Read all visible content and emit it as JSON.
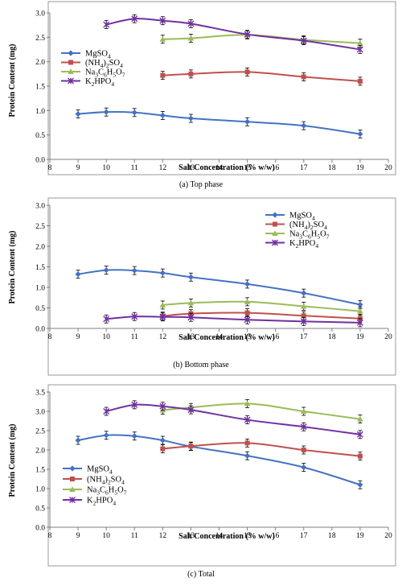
{
  "chart_data": [
    {
      "type": "line",
      "caption": "(a) Top phase",
      "xlabel": "Salt Concentration (% w/w)",
      "ylabel": "Protein Content (mg)",
      "xlim": [
        8,
        20
      ],
      "ylim": [
        0,
        3.0
      ],
      "xticks": [
        "8",
        "9",
        "10",
        "11",
        "12",
        "13",
        "14",
        "15",
        "16",
        "17",
        "18",
        "19",
        "20"
      ],
      "yticks": [
        "0.0",
        "0.5",
        "1.0",
        "1.5",
        "2.0",
        "2.5",
        "3.0"
      ],
      "grid": false,
      "legend_position": "top-left",
      "series": [
        {
          "name": "MgSO4",
          "legend_main": "MgSO",
          "legend_sub": "4",
          "color": "#4472C4",
          "marker": "diamond",
          "x": [
            9,
            10,
            11,
            12,
            13,
            15,
            17,
            19
          ],
          "y": [
            0.93,
            0.97,
            0.96,
            0.9,
            0.84,
            0.77,
            0.69,
            0.52
          ]
        },
        {
          "name": "(NH4)2SO4",
          "legend_main": "(NH",
          "legend_sub": "4",
          "legend_main2": ")",
          "legend_sub2": "2",
          "legend_main3": "SO",
          "legend_sub3": "4",
          "color": "#C0504D",
          "marker": "square",
          "x": [
            12,
            13,
            15,
            17,
            19
          ],
          "y": [
            1.72,
            1.75,
            1.79,
            1.69,
            1.6
          ]
        },
        {
          "name": "Na3C6H5O7",
          "legend_main": "Na",
          "legend_sub": "3",
          "legend_main2": "C",
          "legend_sub2": "6",
          "legend_main3": "H",
          "legend_sub3": "5",
          "legend_main4": "O",
          "legend_sub4": "7",
          "color": "#9BBB59",
          "marker": "triangle",
          "x": [
            12,
            13,
            15,
            17,
            19
          ],
          "y": [
            2.46,
            2.48,
            2.55,
            2.45,
            2.38
          ]
        },
        {
          "name": "K2HPO4",
          "legend_main": "K",
          "legend_sub": "2",
          "legend_main2": "HPO",
          "legend_sub2": "4",
          "color": "#7030A0",
          "marker": "x",
          "x": [
            10,
            11,
            12,
            13,
            15,
            17,
            19
          ],
          "y": [
            2.76,
            2.88,
            2.84,
            2.78,
            2.56,
            2.43,
            2.25
          ]
        }
      ]
    },
    {
      "type": "line",
      "caption": "(b) Bottom phase",
      "xlabel": "Salt Concentration (% w/w)",
      "ylabel": "Protein Content (mg)",
      "xlim": [
        8,
        20
      ],
      "ylim": [
        0,
        3.0
      ],
      "xticks": [
        "8",
        "9",
        "10",
        "11",
        "12",
        "13",
        "14",
        "15",
        "16",
        "17",
        "18",
        "19",
        "20"
      ],
      "yticks": [
        "0.0",
        "0.5",
        "1.0",
        "1.5",
        "2.0",
        "2.5",
        "3.0"
      ],
      "grid": false,
      "legend_position": "top-right",
      "series": [
        {
          "name": "MgSO4",
          "legend_main": "MgSO",
          "legend_sub": "4",
          "color": "#4472C4",
          "marker": "diamond",
          "x": [
            9,
            10,
            11,
            12,
            13,
            15,
            17,
            19
          ],
          "y": [
            1.32,
            1.42,
            1.41,
            1.35,
            1.25,
            1.08,
            0.86,
            0.58
          ]
        },
        {
          "name": "(NH4)2SO4",
          "legend_main": "(NH",
          "legend_sub": "4",
          "legend_main2": ")",
          "legend_sub2": "2",
          "legend_main3": "SO",
          "legend_sub3": "4",
          "color": "#C0504D",
          "marker": "square",
          "x": [
            12,
            13,
            15,
            17,
            19
          ],
          "y": [
            0.3,
            0.36,
            0.38,
            0.31,
            0.24
          ]
        },
        {
          "name": "Na3C6H5O7",
          "legend_main": "Na",
          "legend_sub": "3",
          "legend_main2": "C",
          "legend_sub2": "6",
          "legend_main3": "H",
          "legend_sub3": "5",
          "legend_main4": "O",
          "legend_sub4": "7",
          "color": "#9BBB59",
          "marker": "triangle",
          "x": [
            12,
            13,
            15,
            17,
            19
          ],
          "y": [
            0.57,
            0.62,
            0.65,
            0.54,
            0.42
          ]
        },
        {
          "name": "K2HPO4",
          "legend_main": "K",
          "legend_sub": "2",
          "legend_main2": "HPO",
          "legend_sub2": "4",
          "color": "#7030A0",
          "marker": "x",
          "x": [
            10,
            11,
            12,
            13,
            15,
            17,
            19
          ],
          "y": [
            0.23,
            0.29,
            0.28,
            0.27,
            0.21,
            0.17,
            0.14
          ]
        }
      ]
    },
    {
      "type": "line",
      "caption": "(c) Total",
      "xlabel": "Salt Concentration (% w/w)",
      "ylabel": "Protein Content (mg)",
      "xlim": [
        8,
        20
      ],
      "ylim": [
        0,
        3.5
      ],
      "xticks": [
        "8",
        "9",
        "10",
        "11",
        "12",
        "13",
        "14",
        "15",
        "16",
        "17",
        "18",
        "19",
        "20"
      ],
      "yticks": [
        "0.0",
        "0.5",
        "1.0",
        "1.5",
        "2.0",
        "2.5",
        "3.0",
        "3.5"
      ],
      "grid": false,
      "legend_position": "bottom-left",
      "series": [
        {
          "name": "MgSO4",
          "legend_main": "MgSO",
          "legend_sub": "4",
          "color": "#4472C4",
          "marker": "diamond",
          "x": [
            9,
            10,
            11,
            12,
            13,
            15,
            17,
            19
          ],
          "y": [
            2.25,
            2.38,
            2.36,
            2.25,
            2.09,
            1.85,
            1.55,
            1.1
          ]
        },
        {
          "name": "(NH4)2SO4",
          "legend_main": "(NH",
          "legend_sub": "4",
          "legend_main2": ")",
          "legend_sub2": "2",
          "legend_main3": "SO",
          "legend_sub3": "4",
          "color": "#C0504D",
          "marker": "square",
          "x": [
            12,
            13,
            15,
            17,
            19
          ],
          "y": [
            2.03,
            2.1,
            2.18,
            2.0,
            1.84
          ]
        },
        {
          "name": "Na3C6H5O7",
          "legend_main": "Na",
          "legend_sub": "3",
          "legend_main2": "C",
          "legend_sub2": "6",
          "legend_main3": "H",
          "legend_sub3": "5",
          "legend_main4": "O",
          "legend_sub4": "7",
          "color": "#9BBB59",
          "marker": "triangle",
          "x": [
            12,
            13,
            15,
            17,
            19
          ],
          "y": [
            3.03,
            3.1,
            3.2,
            3.0,
            2.8
          ]
        },
        {
          "name": "K2HPO4",
          "legend_main": "K",
          "legend_sub": "2",
          "legend_main2": "HPO",
          "legend_sub2": "4",
          "color": "#7030A0",
          "marker": "x",
          "x": [
            10,
            11,
            12,
            13,
            15,
            17,
            19
          ],
          "y": [
            3.0,
            3.17,
            3.13,
            3.04,
            2.78,
            2.6,
            2.4
          ]
        }
      ]
    }
  ]
}
